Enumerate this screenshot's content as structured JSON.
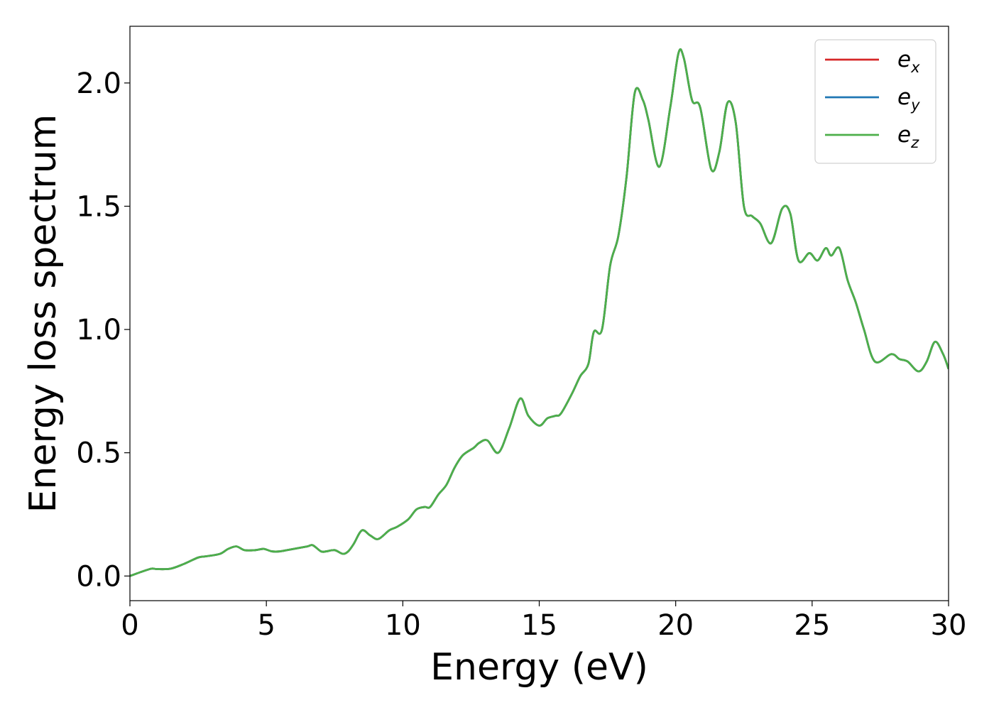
{
  "chart_data": {
    "type": "line",
    "xlabel": "Energy (eV)",
    "ylabel": "Energy loss spectrum",
    "xlim": [
      0,
      30
    ],
    "ylim": [
      -0.1,
      2.23
    ],
    "xticks": [
      0,
      5,
      10,
      15,
      20,
      25,
      30
    ],
    "yticks": [
      0.0,
      0.5,
      1.0,
      1.5,
      2.0
    ],
    "xtick_labels": [
      "0",
      "5",
      "10",
      "15",
      "20",
      "25",
      "30"
    ],
    "ytick_labels": [
      "0.0",
      "0.5",
      "1.0",
      "1.5",
      "2.0"
    ],
    "grid": false,
    "legend_position": "top-right",
    "series": [
      {
        "name": "e",
        "sub": "x",
        "color": "#d62728"
      },
      {
        "name": "e",
        "sub": "y",
        "color": "#1f77b4"
      },
      {
        "name": "e",
        "sub": "z",
        "color": "#4daf4a"
      }
    ],
    "x": [
      0,
      0.5,
      0.8,
      1.0,
      1.5,
      2.0,
      2.5,
      2.8,
      3.3,
      3.6,
      3.9,
      4.2,
      4.6,
      4.9,
      5.2,
      5.5,
      6.0,
      6.5,
      6.7,
      7.0,
      7.2,
      7.5,
      7.8,
      8.0,
      8.2,
      8.5,
      8.8,
      9.1,
      9.5,
      9.8,
      10.2,
      10.5,
      10.8,
      11.0,
      11.3,
      11.6,
      11.9,
      12.2,
      12.6,
      12.8,
      13.1,
      13.5,
      13.9,
      14.3,
      14.6,
      15.0,
      15.3,
      15.6,
      15.8,
      16.2,
      16.5,
      16.8,
      17.0,
      17.3,
      17.6,
      17.9,
      18.2,
      18.5,
      18.8,
      19.0,
      19.4,
      19.8,
      20.1,
      20.3,
      20.6,
      20.9,
      21.3,
      21.6,
      21.9,
      22.2,
      22.5,
      22.8,
      23.1,
      23.5,
      23.9,
      24.2,
      24.5,
      24.9,
      25.2,
      25.5,
      25.7,
      26.0,
      26.3,
      26.6,
      26.9,
      27.3,
      27.9,
      28.2,
      28.5,
      28.9,
      29.2,
      29.5,
      29.8,
      30.0
    ],
    "values": [
      0.0,
      0.02,
      0.03,
      0.028,
      0.03,
      0.05,
      0.075,
      0.08,
      0.09,
      0.11,
      0.12,
      0.105,
      0.105,
      0.11,
      0.1,
      0.1,
      0.11,
      0.12,
      0.125,
      0.1,
      0.1,
      0.105,
      0.09,
      0.1,
      0.13,
      0.185,
      0.165,
      0.15,
      0.185,
      0.2,
      0.23,
      0.27,
      0.28,
      0.28,
      0.33,
      0.37,
      0.44,
      0.49,
      0.52,
      0.54,
      0.55,
      0.5,
      0.6,
      0.72,
      0.65,
      0.61,
      0.64,
      0.65,
      0.66,
      0.74,
      0.81,
      0.86,
      0.99,
      1.0,
      1.26,
      1.38,
      1.62,
      1.96,
      1.93,
      1.85,
      1.66,
      1.9,
      2.12,
      2.1,
      1.93,
      1.9,
      1.65,
      1.72,
      1.92,
      1.84,
      1.5,
      1.46,
      1.43,
      1.35,
      1.49,
      1.47,
      1.28,
      1.31,
      1.28,
      1.33,
      1.3,
      1.33,
      1.2,
      1.11,
      1.0,
      0.87,
      0.9,
      0.88,
      0.87,
      0.83,
      0.87,
      0.95,
      0.9,
      0.84
    ]
  }
}
